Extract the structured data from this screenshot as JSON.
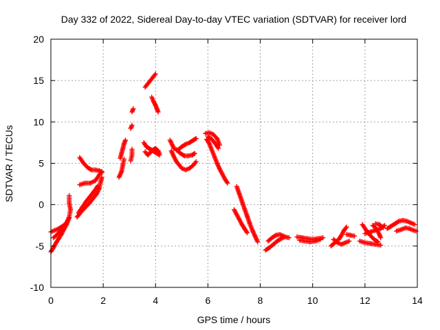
{
  "chart_data": {
    "type": "scatter",
    "title": "Day 332 of 2022, Sidereal Day-to-day VTEC variation (SDTVAR) for receiver lord",
    "xlabel": "GPS time / hours",
    "ylabel": "SDTVAR / TECUs",
    "xlim": [
      0,
      14
    ],
    "ylim": [
      -10,
      20
    ],
    "xticks": [
      "0",
      "2",
      "4",
      "6",
      "8",
      "10",
      "12",
      "14"
    ],
    "yticks": [
      "-10",
      "-5",
      "0",
      "5",
      "10",
      "15",
      "20"
    ],
    "grid": true,
    "marker": "plus",
    "color": "#ff0000",
    "segments": [
      [
        [
          0.0,
          -5.7
        ],
        [
          0.1,
          -5.2
        ],
        [
          0.2,
          -4.6
        ],
        [
          0.3,
          -4.1
        ],
        [
          0.4,
          -3.6
        ],
        [
          0.5,
          -3.0
        ],
        [
          0.6,
          -2.4
        ],
        [
          0.7,
          -1.6
        ]
      ],
      [
        [
          0.0,
          -3.3
        ],
        [
          0.15,
          -3.1
        ],
        [
          0.3,
          -2.9
        ],
        [
          0.45,
          -2.6
        ],
        [
          0.6,
          -2.2
        ],
        [
          0.7,
          -1.5
        ],
        [
          0.75,
          -0.6
        ],
        [
          0.7,
          0.2
        ],
        [
          0.7,
          1.1
        ]
      ],
      [
        [
          0.1,
          -4.0
        ],
        [
          0.25,
          -3.6
        ],
        [
          0.4,
          -3.0
        ],
        [
          0.55,
          -2.5
        ],
        [
          0.65,
          -1.9
        ]
      ],
      [
        [
          1.0,
          -1.5
        ],
        [
          1.15,
          -0.9
        ],
        [
          1.3,
          -0.4
        ],
        [
          1.45,
          0.1
        ],
        [
          1.6,
          0.7
        ],
        [
          1.75,
          1.3
        ],
        [
          1.85,
          2.0
        ],
        [
          1.9,
          2.7
        ],
        [
          1.95,
          3.3
        ]
      ],
      [
        [
          1.05,
          -1.0
        ],
        [
          1.2,
          -0.3
        ],
        [
          1.35,
          0.4
        ],
        [
          1.5,
          1.0
        ],
        [
          1.65,
          1.6
        ],
        [
          1.8,
          2.3
        ]
      ],
      [
        [
          1.1,
          2.4
        ],
        [
          1.3,
          2.6
        ],
        [
          1.5,
          2.6
        ],
        [
          1.7,
          2.9
        ],
        [
          1.85,
          3.6
        ],
        [
          1.95,
          4.0
        ]
      ],
      [
        [
          1.1,
          5.7
        ],
        [
          1.25,
          5.0
        ],
        [
          1.4,
          4.5
        ],
        [
          1.55,
          4.2
        ],
        [
          1.7,
          4.2
        ],
        [
          1.85,
          4.1
        ],
        [
          1.95,
          3.9
        ]
      ],
      [
        [
          2.6,
          3.3
        ],
        [
          2.7,
          4.0
        ],
        [
          2.75,
          4.8
        ],
        [
          2.8,
          5.5
        ]
      ],
      [
        [
          2.65,
          5.6
        ],
        [
          2.7,
          6.2
        ],
        [
          2.75,
          6.8
        ],
        [
          2.8,
          7.4
        ],
        [
          2.85,
          7.8
        ]
      ],
      [
        [
          3.05,
          5.3
        ],
        [
          3.1,
          6.0
        ],
        [
          3.1,
          6.7
        ]
      ],
      [
        [
          3.05,
          9.2
        ],
        [
          3.1,
          9.6
        ]
      ],
      [
        [
          3.1,
          11.2
        ],
        [
          3.15,
          11.6
        ]
      ],
      [
        [
          3.6,
          14.2
        ],
        [
          3.7,
          14.6
        ],
        [
          3.8,
          15.0
        ],
        [
          3.9,
          15.4
        ],
        [
          4.0,
          15.8
        ]
      ],
      [
        [
          3.85,
          13.0
        ],
        [
          3.92,
          12.5
        ],
        [
          4.0,
          12.0
        ],
        [
          4.05,
          11.6
        ],
        [
          4.1,
          11.2
        ]
      ],
      [
        [
          3.55,
          7.5
        ],
        [
          3.65,
          7.0
        ],
        [
          3.75,
          6.8
        ],
        [
          3.85,
          6.6
        ],
        [
          3.95,
          6.4
        ],
        [
          4.05,
          6.2
        ],
        [
          4.15,
          6.0
        ]
      ],
      [
        [
          3.6,
          6.4
        ],
        [
          3.7,
          6.0
        ],
        [
          3.8,
          6.3
        ],
        [
          3.9,
          6.6
        ],
        [
          4.0,
          6.8
        ],
        [
          4.1,
          6.5
        ],
        [
          4.15,
          6.2
        ]
      ],
      [
        [
          4.55,
          7.8
        ],
        [
          4.7,
          6.8
        ],
        [
          4.85,
          6.6
        ],
        [
          5.0,
          7.0
        ],
        [
          5.15,
          7.3
        ],
        [
          5.3,
          7.5
        ],
        [
          5.45,
          7.8
        ],
        [
          5.55,
          8.0
        ]
      ],
      [
        [
          4.6,
          6.5
        ],
        [
          4.7,
          5.8
        ],
        [
          4.8,
          5.2
        ],
        [
          4.9,
          4.8
        ],
        [
          5.0,
          4.4
        ],
        [
          5.15,
          4.2
        ],
        [
          5.3,
          4.4
        ],
        [
          5.45,
          4.8
        ],
        [
          5.55,
          5.2
        ]
      ],
      [
        [
          4.8,
          6.6
        ],
        [
          4.95,
          6.2
        ],
        [
          5.1,
          5.9
        ],
        [
          5.25,
          5.9
        ],
        [
          5.4,
          6.0
        ],
        [
          5.5,
          6.2
        ]
      ],
      [
        [
          5.9,
          8.6
        ],
        [
          6.05,
          8.7
        ],
        [
          6.2,
          8.5
        ],
        [
          6.35,
          8.0
        ],
        [
          6.45,
          7.2
        ]
      ],
      [
        [
          5.95,
          7.9
        ],
        [
          6.05,
          7.4
        ],
        [
          6.15,
          6.6
        ],
        [
          6.25,
          5.8
        ],
        [
          6.35,
          5.0
        ],
        [
          6.45,
          4.3
        ],
        [
          6.55,
          3.7
        ],
        [
          6.65,
          3.1
        ],
        [
          6.75,
          2.6
        ]
      ],
      [
        [
          6.0,
          8.2
        ],
        [
          6.15,
          7.9
        ],
        [
          6.3,
          7.3
        ],
        [
          6.4,
          6.8
        ]
      ],
      [
        [
          7.1,
          2.2
        ],
        [
          7.2,
          1.3
        ],
        [
          7.3,
          0.4
        ],
        [
          7.4,
          -0.5
        ],
        [
          7.5,
          -1.4
        ],
        [
          7.6,
          -2.3
        ],
        [
          7.7,
          -3.1
        ],
        [
          7.8,
          -3.8
        ],
        [
          7.9,
          -4.5
        ]
      ],
      [
        [
          7.0,
          -0.6
        ],
        [
          7.1,
          -1.2
        ],
        [
          7.2,
          -1.8
        ],
        [
          7.3,
          -2.4
        ],
        [
          7.4,
          -2.9
        ],
        [
          7.5,
          -3.4
        ]
      ],
      [
        [
          8.2,
          -5.5
        ],
        [
          8.35,
          -5.2
        ],
        [
          8.5,
          -4.8
        ],
        [
          8.65,
          -4.4
        ],
        [
          8.8,
          -4.1
        ],
        [
          8.95,
          -3.9
        ],
        [
          9.1,
          -4.0
        ]
      ],
      [
        [
          8.3,
          -4.4
        ],
        [
          8.45,
          -4.0
        ],
        [
          8.6,
          -3.7
        ],
        [
          8.75,
          -3.6
        ],
        [
          8.9,
          -3.8
        ]
      ],
      [
        [
          9.4,
          -3.9
        ],
        [
          9.6,
          -4.0
        ],
        [
          9.8,
          -4.1
        ],
        [
          10.0,
          -4.2
        ],
        [
          10.2,
          -4.1
        ],
        [
          10.4,
          -4.0
        ]
      ],
      [
        [
          9.5,
          -4.3
        ],
        [
          9.7,
          -4.4
        ],
        [
          9.9,
          -4.5
        ],
        [
          10.1,
          -4.4
        ],
        [
          10.3,
          -4.2
        ]
      ],
      [
        [
          10.7,
          -5.0
        ],
        [
          10.85,
          -4.6
        ],
        [
          11.0,
          -4.2
        ],
        [
          11.1,
          -3.7
        ],
        [
          11.2,
          -3.1
        ],
        [
          11.3,
          -2.7
        ]
      ],
      [
        [
          10.8,
          -4.2
        ],
        [
          10.95,
          -4.6
        ],
        [
          11.1,
          -4.8
        ],
        [
          11.25,
          -4.6
        ],
        [
          11.4,
          -4.4
        ]
      ],
      [
        [
          11.3,
          -3.6
        ],
        [
          11.45,
          -3.7
        ],
        [
          11.6,
          -3.8
        ]
      ],
      [
        [
          11.8,
          -4.4
        ],
        [
          12.0,
          -4.6
        ],
        [
          12.2,
          -4.7
        ],
        [
          12.4,
          -4.8
        ],
        [
          12.6,
          -4.9
        ]
      ],
      [
        [
          11.9,
          -2.4
        ],
        [
          12.05,
          -3.1
        ],
        [
          12.2,
          -3.7
        ],
        [
          12.35,
          -4.2
        ],
        [
          12.5,
          -4.5
        ]
      ],
      [
        [
          12.3,
          -2.5
        ],
        [
          12.45,
          -3.0
        ],
        [
          12.55,
          -3.6
        ],
        [
          12.6,
          -4.0
        ]
      ],
      [
        [
          12.0,
          -3.5
        ],
        [
          12.2,
          -3.3
        ],
        [
          12.4,
          -3.1
        ],
        [
          12.6,
          -2.9
        ],
        [
          12.75,
          -2.5
        ]
      ],
      [
        [
          12.4,
          -2.3
        ],
        [
          12.55,
          -2.4
        ],
        [
          12.7,
          -2.8
        ]
      ],
      [
        [
          12.85,
          -2.9
        ],
        [
          13.0,
          -2.6
        ],
        [
          13.15,
          -2.3
        ],
        [
          13.3,
          -2.0
        ],
        [
          13.45,
          -1.9
        ],
        [
          13.6,
          -2.0
        ],
        [
          13.75,
          -2.2
        ],
        [
          13.9,
          -2.4
        ]
      ],
      [
        [
          13.2,
          -3.2
        ],
        [
          13.4,
          -3.0
        ],
        [
          13.55,
          -2.8
        ],
        [
          13.7,
          -2.9
        ],
        [
          13.85,
          -3.1
        ],
        [
          13.95,
          -3.2
        ]
      ]
    ]
  }
}
